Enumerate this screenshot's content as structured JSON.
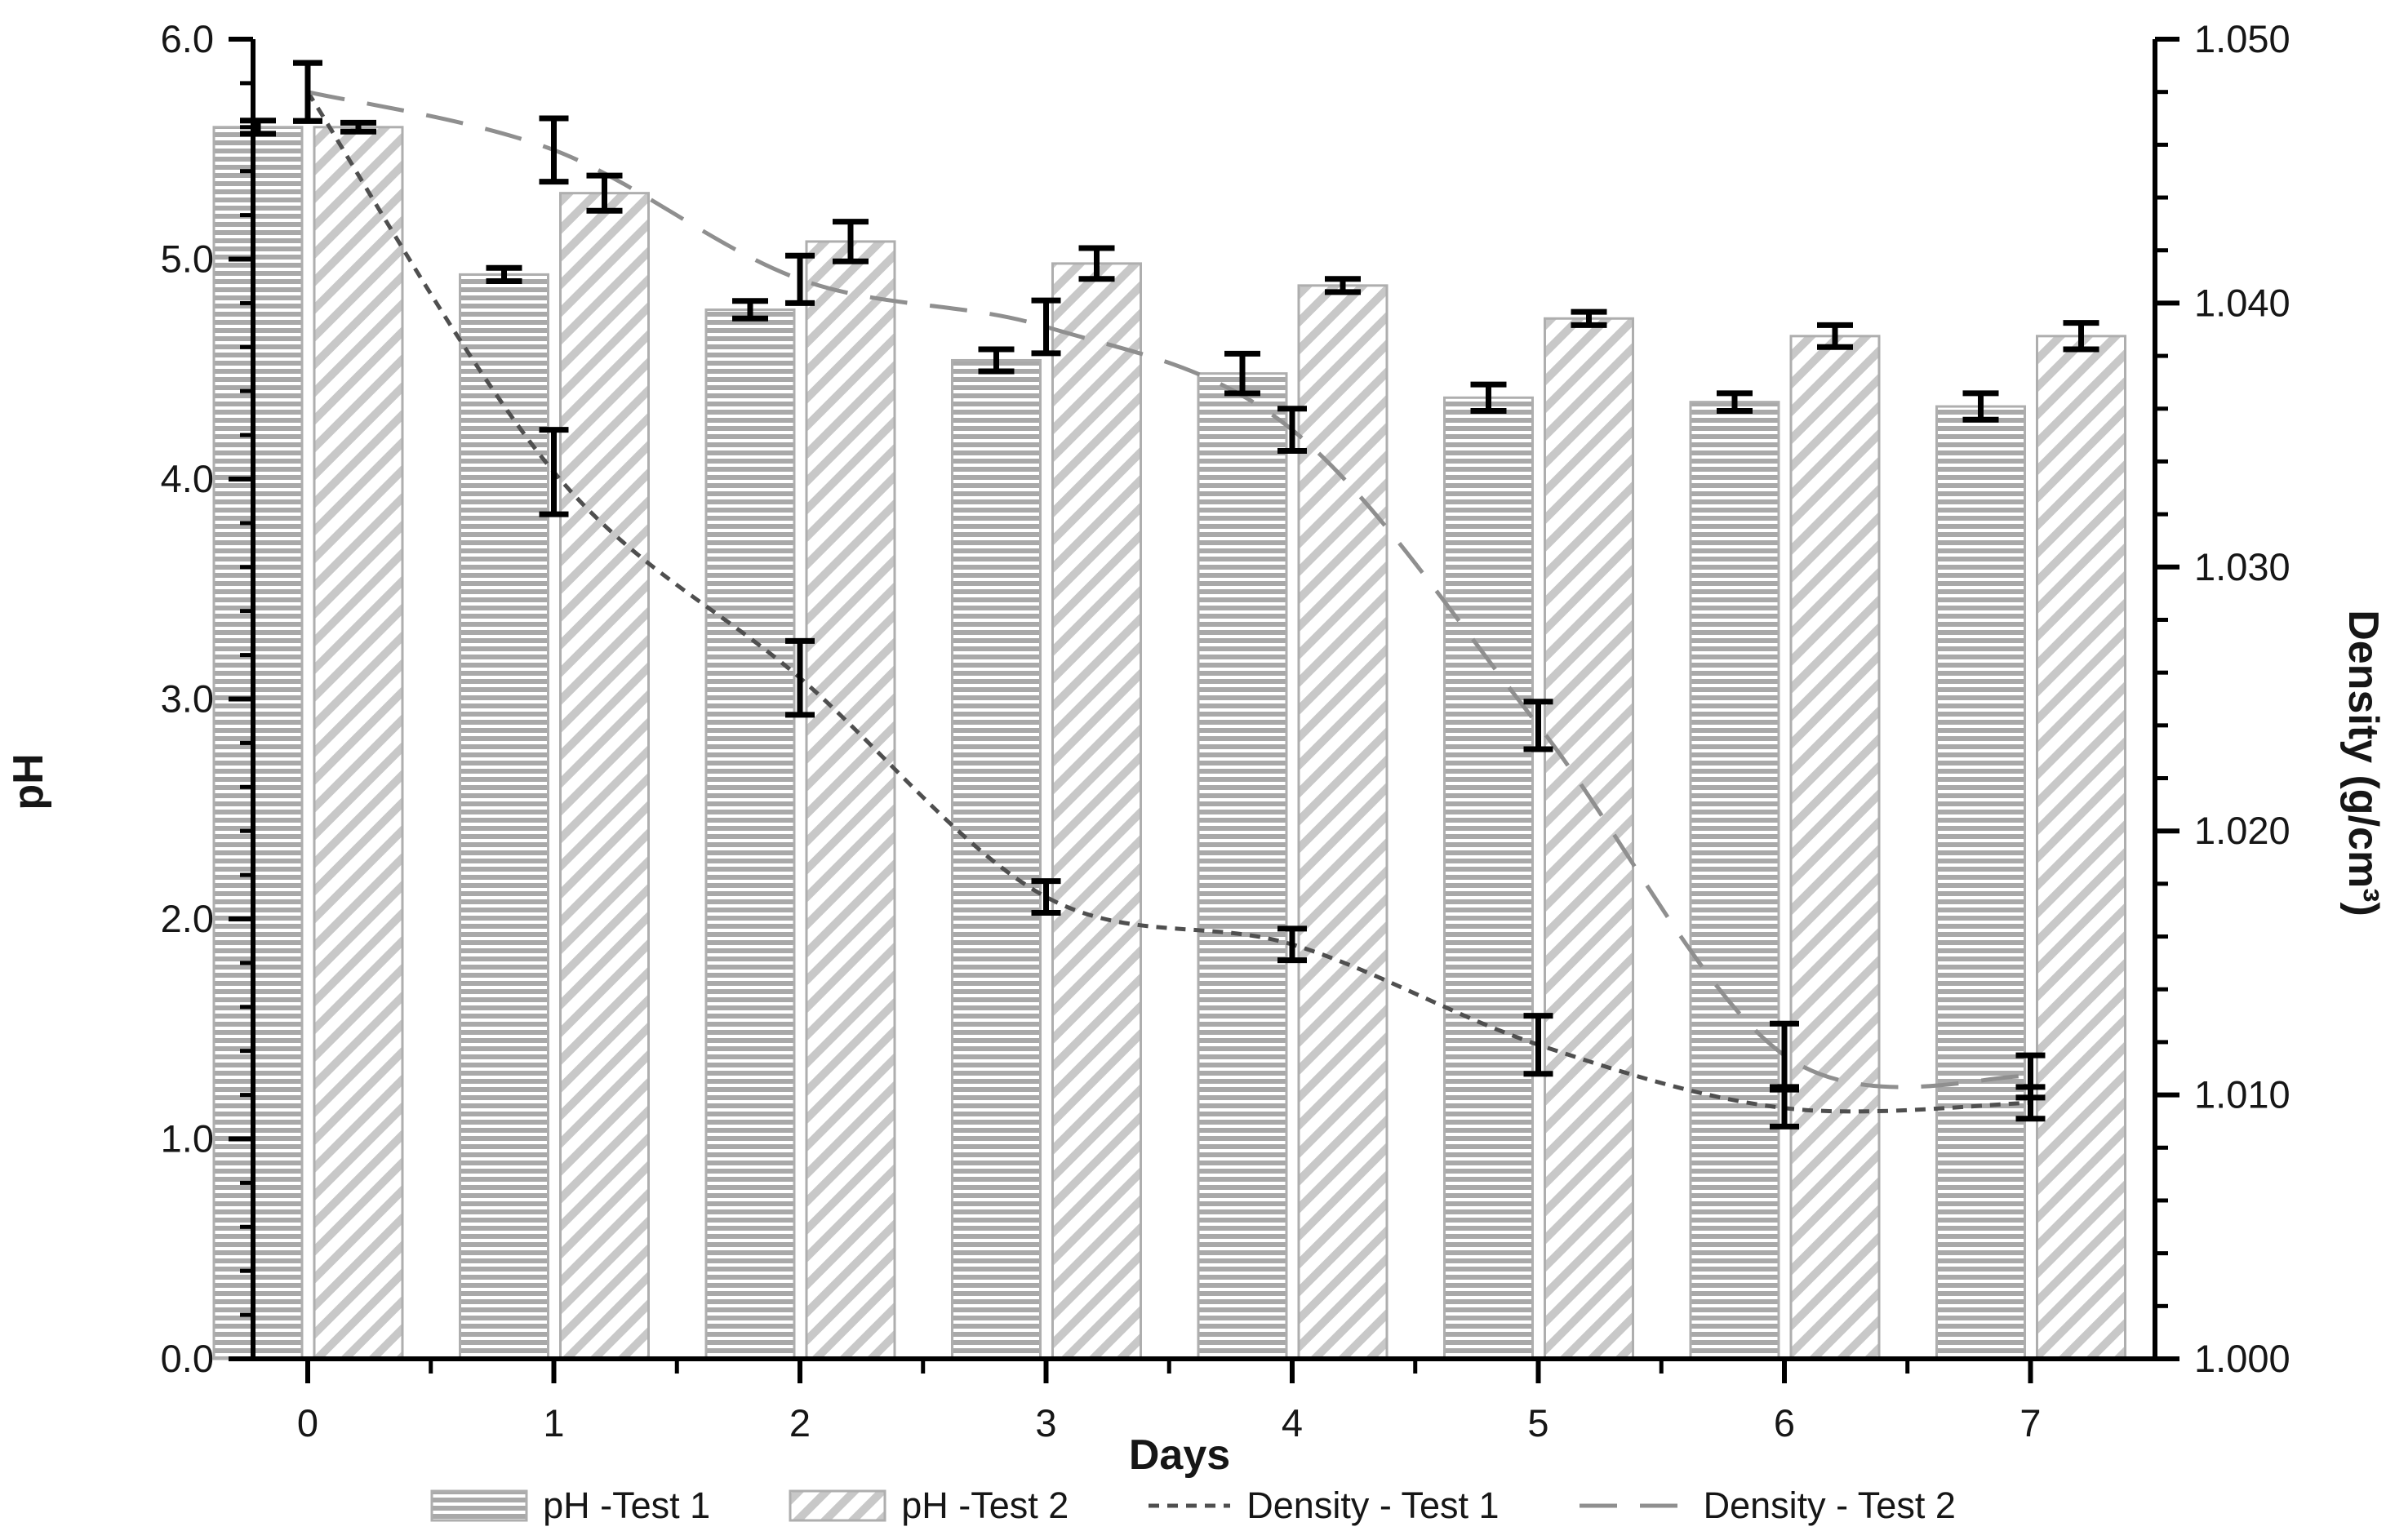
{
  "chart_data": {
    "type": "bar+line",
    "x": [
      0,
      1,
      2,
      3,
      4,
      5,
      6,
      7
    ],
    "x_axis": {
      "label": "Days",
      "tick_values": [
        0,
        1,
        2,
        3,
        4,
        5,
        6,
        7
      ],
      "tick_labels": [
        "0",
        "1",
        "2",
        "3",
        "4",
        "5",
        "6",
        "7"
      ],
      "minor_step": 0.5
    },
    "left_axis": {
      "label": "pH",
      "min": 0,
      "max": 6,
      "major_step": 1,
      "minor_step": 0.2,
      "tick_labels": [
        "0.0",
        "1.0",
        "2.0",
        "3.0",
        "4.0",
        "5.0",
        "6.0"
      ]
    },
    "right_axis": {
      "label": "Density (g/cm³)",
      "min": 1.0,
      "max": 1.05,
      "major_step": 0.01,
      "minor_step": 0.002,
      "tick_labels": [
        "1.000",
        "1.010",
        "1.020",
        "1.030",
        "1.040",
        "1.050"
      ]
    },
    "series": [
      {
        "name": "pH -Test 1",
        "type": "bar",
        "axis": "left",
        "pattern": "horizontal-stripes",
        "values": [
          5.6,
          4.93,
          4.77,
          4.54,
          4.48,
          4.37,
          4.35,
          4.33
        ],
        "errors": [
          0.03,
          0.03,
          0.04,
          0.05,
          0.09,
          0.06,
          0.04,
          0.06
        ]
      },
      {
        "name": "pH -Test 2",
        "type": "bar",
        "axis": "left",
        "pattern": "diagonal-stripes",
        "values": [
          5.6,
          5.3,
          5.08,
          4.98,
          4.88,
          4.73,
          4.65,
          4.65
        ],
        "errors": [
          0.02,
          0.08,
          0.09,
          0.07,
          0.03,
          0.03,
          0.05,
          0.06
        ]
      },
      {
        "name": "Density - Test 1",
        "type": "line",
        "style": "dotted",
        "axis": "right",
        "values": [
          1.048,
          1.0336,
          1.0258,
          1.0175,
          1.0157,
          1.0119,
          1.0095,
          1.0097
        ],
        "errors": [
          0.0011,
          0.0016,
          0.0014,
          0.0006,
          0.0006,
          0.0011,
          0.0007,
          0.0006
        ]
      },
      {
        "name": "Density - Test 2",
        "type": "line",
        "style": "long-dash",
        "axis": "right",
        "values": [
          1.048,
          1.0458,
          1.0409,
          1.0391,
          1.0352,
          1.024,
          1.0115,
          1.0107
        ],
        "errors": [
          0.0011,
          0.0012,
          0.0009,
          0.001,
          0.0008,
          0.0009,
          0.0012,
          0.0008
        ]
      }
    ],
    "legend_position": "bottom",
    "grid": "off",
    "colors": {
      "axis": "#000000",
      "text": "#161616",
      "bar_border": "#aeaeae",
      "hatch_horizontal": "#a9a9a9",
      "hatch_diagonal": "#c8c8c8",
      "dotted_line": "#4f4f4f",
      "dashed_line": "#8f8f8f",
      "error_bar": "#000000"
    }
  }
}
